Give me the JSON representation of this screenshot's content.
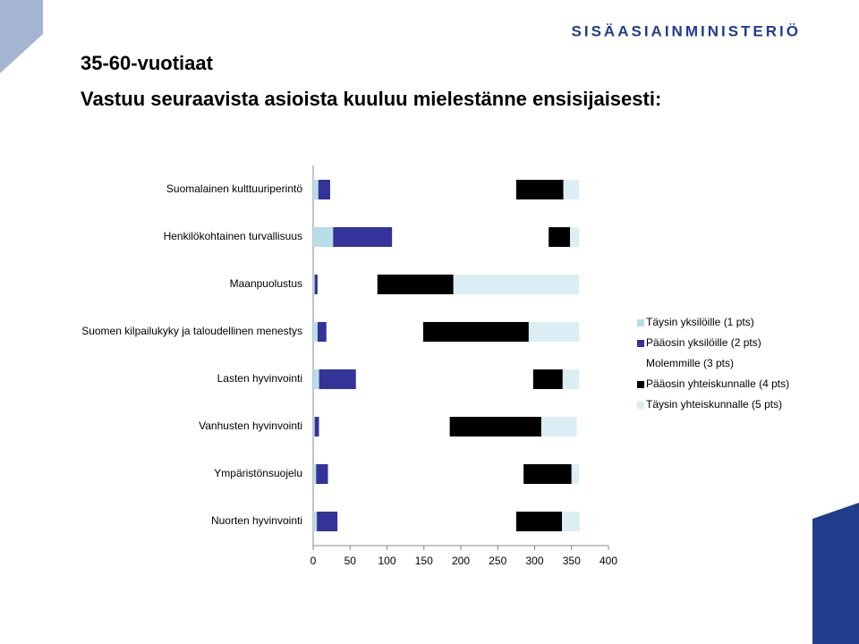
{
  "logo": "SISÄASIAINMINISTERIÖ",
  "chart_data": {
    "type": "stacked-bar-horizontal",
    "title": "35-60-vuotiaat",
    "subtitle": "Vastuu seuraavista asioista kuuluu mielestänne ensisijaisesti:",
    "categories": [
      "Suomalainen kulttuuriperintö",
      "Henkilökohtainen turvallisuus",
      "Maanpuolustus",
      "Suomen kilpailukyky ja taloudellinen menestys",
      "Lasten hyvinvointi",
      "Vanhusten hyvinvointi",
      "Ympäristönsuojelu",
      "Nuorten hyvinvointi"
    ],
    "series": [
      {
        "name": "Täysin yksilöille (1 pts)",
        "color": "#b7dde8",
        "values": [
          7,
          27,
          2,
          6,
          8,
          2,
          4,
          5
        ]
      },
      {
        "name": "Pääosin yksilöille (2 pts)",
        "color": "#333399",
        "values": [
          16,
          80,
          4,
          12,
          50,
          6,
          16,
          28
        ]
      },
      {
        "name": "Molemmille (3 pts)",
        "color": "#ffffff",
        "values": [
          252,
          212,
          81,
          131,
          240,
          177,
          265,
          242
        ]
      },
      {
        "name": "Pääosin yhteiskunnalle (4 pts)",
        "color": "#000000",
        "values": [
          64,
          29,
          103,
          143,
          40,
          124,
          65,
          62
        ]
      },
      {
        "name": "Täysin yhteiskunnalle (5 pts)",
        "color": "#dbeef3",
        "values": [
          21,
          12,
          170,
          68,
          22,
          48,
          10,
          24
        ]
      }
    ],
    "xlim": [
      0,
      400
    ],
    "xticks": [
      0,
      50,
      100,
      150,
      200,
      250,
      300,
      350,
      400
    ]
  }
}
